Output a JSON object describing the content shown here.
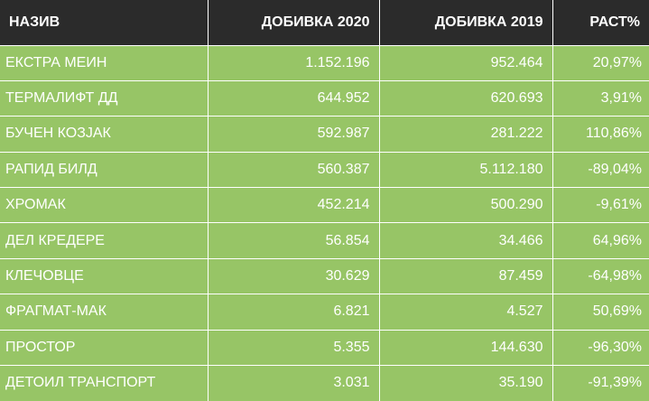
{
  "headers": [
    "НАЗИВ",
    "ДОБИВКА 2020",
    "ДОБИВКА 2019",
    "РАСТ%"
  ],
  "rows": [
    [
      "ЕКСТРА МЕИН",
      "1.152.196",
      "952.464",
      "20,97%"
    ],
    [
      "ТЕРМАЛИФТ ДД",
      "644.952",
      "620.693",
      "3,91%"
    ],
    [
      "БУЧЕН КОЗЈАК",
      "592.987",
      "281.222",
      "110,86%"
    ],
    [
      "РАПИД БИЛД",
      "560.387",
      "5.112.180",
      "-89,04%"
    ],
    [
      "ХРОМАК",
      "452.214",
      "500.290",
      "-9,61%"
    ],
    [
      "ДЕЛ КРЕДЕРЕ",
      "56.854",
      "34.466",
      "64,96%"
    ],
    [
      "КЛЕЧОВЦЕ",
      "30.629",
      "87.459",
      "-64,98%"
    ],
    [
      "ФРАГМАТ-МАК",
      "6.821",
      "4.527",
      "50,69%"
    ],
    [
      "ПРОСТОР",
      "5.355",
      "144.630",
      "-96,30%"
    ],
    [
      "ДЕТОИЛ ТРАНСПОРТ",
      "3.031",
      "35.190",
      "-91,39%"
    ]
  ],
  "colors": {
    "header_bg": "#2b2b2b",
    "row_bg": "#97c566",
    "text": "#ffffff"
  }
}
